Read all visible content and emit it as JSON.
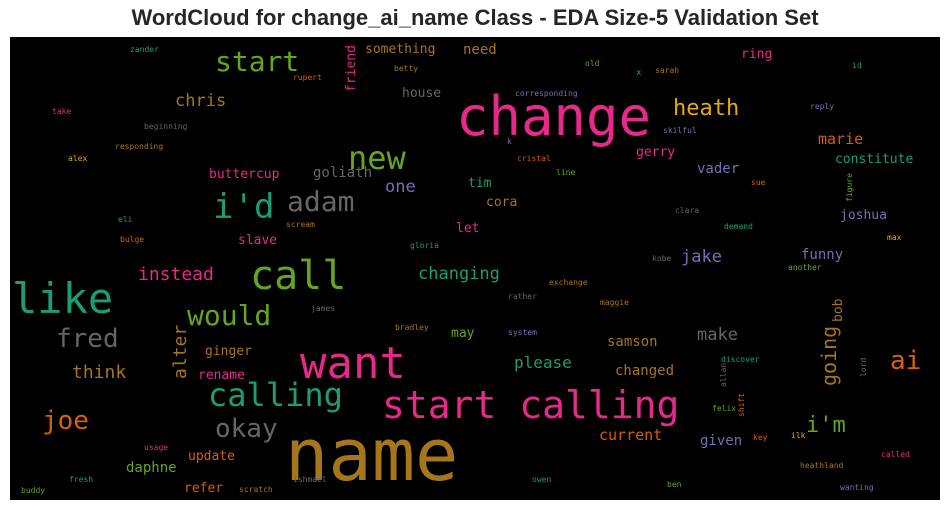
{
  "chart_data": {
    "type": "wordcloud",
    "title": "WordCloud for change_ai_name Class - EDA Size-5 Validation Set",
    "background": "#000000",
    "palette": [
      "#e7298a",
      "#a6761d",
      "#1b9e77",
      "#66a61e",
      "#d95f02",
      "#7570b3",
      "#e6ab02",
      "#666666"
    ],
    "words": [
      {
        "text": "name",
        "size": 72,
        "color": "#a6761d"
      },
      {
        "text": "change",
        "size": 54,
        "color": "#e7298a"
      },
      {
        "text": "want",
        "size": 44,
        "color": "#e7298a"
      },
      {
        "text": "start calling",
        "size": 38,
        "color": "#e7298a"
      },
      {
        "text": "like",
        "size": 42,
        "color": "#1b9e77"
      },
      {
        "text": "call",
        "size": 40,
        "color": "#66a61e"
      },
      {
        "text": "i'd",
        "size": 34,
        "color": "#1b9e77"
      },
      {
        "text": "new",
        "size": 32,
        "color": "#66a61e"
      },
      {
        "text": "calling",
        "size": 32,
        "color": "#1b9e77"
      },
      {
        "text": "adam",
        "size": 28,
        "color": "#666666"
      },
      {
        "text": "start",
        "size": 28,
        "color": "#66a61e"
      },
      {
        "text": "would",
        "size": 28,
        "color": "#66a61e"
      },
      {
        "text": "fred",
        "size": 26,
        "color": "#666666"
      },
      {
        "text": "joe",
        "size": 26,
        "color": "#d95f02"
      },
      {
        "text": "ai",
        "size": 26,
        "color": "#d95f02"
      },
      {
        "text": "okay",
        "size": 26,
        "color": "#666666"
      },
      {
        "text": "heath",
        "size": 22,
        "color": "#e6ab02"
      },
      {
        "text": "i'm",
        "size": 22,
        "color": "#66a61e"
      },
      {
        "text": "going",
        "size": 20,
        "color": "#a6761d"
      },
      {
        "text": "alter",
        "size": 18,
        "color": "#a6761d"
      },
      {
        "text": "instead",
        "size": 18,
        "color": "#e7298a"
      },
      {
        "text": "chris",
        "size": 17,
        "color": "#a6761d"
      },
      {
        "text": "think",
        "size": 18,
        "color": "#a6761d"
      },
      {
        "text": "changing",
        "size": 17,
        "color": "#1b9e77"
      },
      {
        "text": "make",
        "size": 17,
        "color": "#666666"
      },
      {
        "text": "please",
        "size": 16,
        "color": "#1b9e77"
      },
      {
        "text": "one",
        "size": 17,
        "color": "#7570b3"
      },
      {
        "text": "jake",
        "size": 17,
        "color": "#7570b3"
      },
      {
        "text": "marie",
        "size": 15,
        "color": "#d95f02"
      },
      {
        "text": "current",
        "size": 15,
        "color": "#d95f02"
      },
      {
        "text": "need",
        "size": 14,
        "color": "#a6761d"
      },
      {
        "text": "goliath",
        "size": 14,
        "color": "#666666"
      },
      {
        "text": "buttercup",
        "size": 13,
        "color": "#e7298a"
      },
      {
        "text": "constitute",
        "size": 13,
        "color": "#1b9e77"
      },
      {
        "text": "joshua",
        "size": 13,
        "color": "#7570b3"
      },
      {
        "text": "funny",
        "size": 14,
        "color": "#7570b3"
      },
      {
        "text": "vader",
        "size": 14,
        "color": "#7570b3"
      },
      {
        "text": "samson",
        "size": 14,
        "color": "#a6761d"
      },
      {
        "text": "changed",
        "size": 14,
        "color": "#a6761d"
      },
      {
        "text": "given",
        "size": 14,
        "color": "#7570b3"
      },
      {
        "text": "daphne",
        "size": 14,
        "color": "#66a61e"
      },
      {
        "text": "update",
        "size": 13,
        "color": "#d95f02"
      },
      {
        "text": "refer",
        "size": 13,
        "color": "#d95f02"
      },
      {
        "text": "slave",
        "size": 13,
        "color": "#e7298a"
      },
      {
        "text": "ginger",
        "size": 13,
        "color": "#a6761d"
      },
      {
        "text": "rename",
        "size": 13,
        "color": "#e7298a"
      },
      {
        "text": "cora",
        "size": 13,
        "color": "#a6761d"
      },
      {
        "text": "tim",
        "size": 13,
        "color": "#1b9e77"
      },
      {
        "text": "let",
        "size": 13,
        "color": "#e7298a"
      },
      {
        "text": "may",
        "size": 13,
        "color": "#66a61e"
      },
      {
        "text": "bob",
        "size": 13,
        "color": "#a6761d"
      },
      {
        "text": "house",
        "size": 13,
        "color": "#666666"
      },
      {
        "text": "something",
        "size": 13,
        "color": "#a6761d"
      },
      {
        "text": "friend",
        "size": 13,
        "color": "#e7298a"
      },
      {
        "text": "gerry",
        "size": 13,
        "color": "#e7298a"
      },
      {
        "text": "ring",
        "size": 13,
        "color": "#e7298a"
      },
      {
        "text": "zander",
        "size": 8,
        "color": "#1b9e77"
      },
      {
        "text": "rupert",
        "size": 8,
        "color": "#d95f02"
      },
      {
        "text": "betty",
        "size": 8,
        "color": "#a6761d"
      },
      {
        "text": "corresponding",
        "size": 8,
        "color": "#7570b3"
      },
      {
        "text": "old",
        "size": 8,
        "color": "#66a61e"
      },
      {
        "text": "x",
        "size": 9,
        "color": "#1b9e77"
      },
      {
        "text": "sarah",
        "size": 8,
        "color": "#a6761d"
      },
      {
        "text": "id",
        "size": 8,
        "color": "#1b9e77"
      },
      {
        "text": "take",
        "size": 8,
        "color": "#e7298a"
      },
      {
        "text": "beginning",
        "size": 8,
        "color": "#666666"
      },
      {
        "text": "reply",
        "size": 8,
        "color": "#7570b3"
      },
      {
        "text": "skilful",
        "size": 8,
        "color": "#7570b3"
      },
      {
        "text": "responding",
        "size": 8,
        "color": "#a6761d"
      },
      {
        "text": "k",
        "size": 8,
        "color": "#7570b3"
      },
      {
        "text": "alex",
        "size": 8,
        "color": "#e6ab02"
      },
      {
        "text": "cristal",
        "size": 8,
        "color": "#d95f02"
      },
      {
        "text": "line",
        "size": 8,
        "color": "#66a61e"
      },
      {
        "text": "sue",
        "size": 8,
        "color": "#d95f02"
      },
      {
        "text": "figure",
        "size": 8,
        "color": "#66a61e"
      },
      {
        "text": "eli",
        "size": 8,
        "color": "#1b9e77"
      },
      {
        "text": "scream",
        "size": 8,
        "color": "#a6761d"
      },
      {
        "text": "clara",
        "size": 8,
        "color": "#666666"
      },
      {
        "text": "demand",
        "size": 8,
        "color": "#1b9e77"
      },
      {
        "text": "bulge",
        "size": 8,
        "color": "#d95f02"
      },
      {
        "text": "gloria",
        "size": 8,
        "color": "#1b9e77"
      },
      {
        "text": "max",
        "size": 8,
        "color": "#e6ab02"
      },
      {
        "text": "kobe",
        "size": 8,
        "color": "#666666"
      },
      {
        "text": "another",
        "size": 8,
        "color": "#66a61e"
      },
      {
        "text": "exchange",
        "size": 8,
        "color": "#a6761d"
      },
      {
        "text": "rather",
        "size": 8,
        "color": "#666666"
      },
      {
        "text": "james",
        "size": 8,
        "color": "#666666"
      },
      {
        "text": "maggie",
        "size": 8,
        "color": "#a6761d"
      },
      {
        "text": "bradley",
        "size": 8,
        "color": "#a6761d"
      },
      {
        "text": "system",
        "size": 8,
        "color": "#7570b3"
      },
      {
        "text": "discover",
        "size": 8,
        "color": "#1b9e77"
      },
      {
        "text": "lord",
        "size": 8,
        "color": "#666666"
      },
      {
        "text": "allan",
        "size": 8,
        "color": "#666666"
      },
      {
        "text": "felix",
        "size": 8,
        "color": "#66a61e"
      },
      {
        "text": "shift",
        "size": 8,
        "color": "#d95f02"
      },
      {
        "text": "usage",
        "size": 8,
        "color": "#e7298a"
      },
      {
        "text": "key",
        "size": 8,
        "color": "#d95f02"
      },
      {
        "text": "ilk",
        "size": 8,
        "color": "#e6ab02"
      },
      {
        "text": "called",
        "size": 8,
        "color": "#e7298a"
      },
      {
        "text": "heathland",
        "size": 8,
        "color": "#a6761d"
      },
      {
        "text": "ishmael",
        "size": 8,
        "color": "#666666"
      },
      {
        "text": "fresh",
        "size": 8,
        "color": "#1b9e77"
      },
      {
        "text": "owen",
        "size": 8,
        "color": "#1b9e77"
      },
      {
        "text": "ben",
        "size": 8,
        "color": "#66a61e"
      },
      {
        "text": "wanting",
        "size": 8,
        "color": "#7570b3"
      },
      {
        "text": "buddy",
        "size": 8,
        "color": "#66a61e"
      },
      {
        "text": "scratch",
        "size": 8,
        "color": "#a6761d"
      }
    ]
  }
}
